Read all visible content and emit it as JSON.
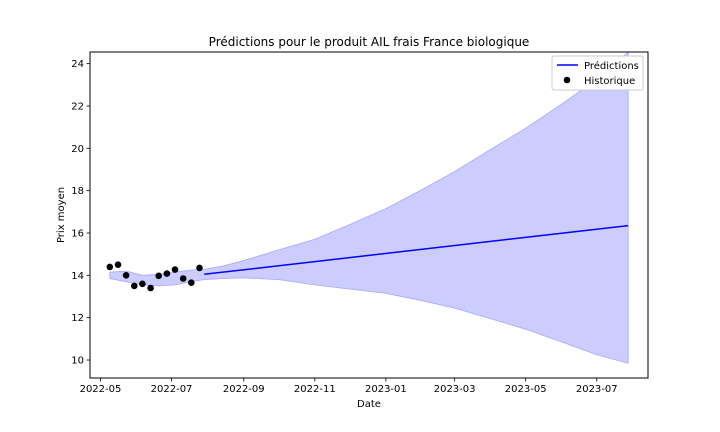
{
  "chart_data": {
    "type": "line",
    "title": "Prédictions pour le produit AIL frais France biologique",
    "xlabel": "Date",
    "ylabel": "Prix moyen",
    "xlim": [
      "2022-04-22",
      "2023-08-14"
    ],
    "ylim": [
      9.15,
      24.55
    ],
    "x_ticks": [
      "2022-05",
      "2022-07",
      "2022-09",
      "2022-11",
      "2023-01",
      "2023-03",
      "2023-05",
      "2023-07"
    ],
    "y_ticks": [
      10,
      12,
      14,
      16,
      18,
      20,
      22,
      24
    ],
    "grid": false,
    "legend_position": "top-right",
    "legend": [
      "Prédictions",
      "Historique"
    ],
    "colors": {
      "prediction_line": "#0000ff",
      "interval_fill": "#ccccff",
      "interval_edge": "#a8a8ff",
      "history_points": "#000000"
    },
    "series": [
      {
        "name": "Prédictions",
        "kind": "line",
        "points": [
          {
            "x": "2022-07-29",
            "y": 14.05
          },
          {
            "x": "2023-07-28",
            "y": 16.35
          }
        ]
      },
      {
        "name": "Historique",
        "kind": "scatter",
        "points": [
          {
            "x": "2022-05-09",
            "y": 14.4
          },
          {
            "x": "2022-05-16",
            "y": 14.5
          },
          {
            "x": "2022-05-23",
            "y": 14.0
          },
          {
            "x": "2022-05-30",
            "y": 13.5
          },
          {
            "x": "2022-06-06",
            "y": 13.6
          },
          {
            "x": "2022-06-13",
            "y": 13.4
          },
          {
            "x": "2022-06-20",
            "y": 13.98
          },
          {
            "x": "2022-06-27",
            "y": 14.08
          },
          {
            "x": "2022-07-04",
            "y": 14.27
          },
          {
            "x": "2022-07-11",
            "y": 13.85
          },
          {
            "x": "2022-07-18",
            "y": 13.65
          },
          {
            "x": "2022-07-25",
            "y": 14.35
          }
        ]
      },
      {
        "kind": "interval_upper",
        "points": [
          {
            "x": "2022-05-09",
            "y": 14.15
          },
          {
            "x": "2022-05-23",
            "y": 14.2
          },
          {
            "x": "2022-06-06",
            "y": 14.0
          },
          {
            "x": "2022-06-20",
            "y": 14.05
          },
          {
            "x": "2022-07-04",
            "y": 14.15
          },
          {
            "x": "2022-07-18",
            "y": 14.25
          },
          {
            "x": "2022-07-29",
            "y": 14.28
          },
          {
            "x": "2022-08-15",
            "y": 14.45
          },
          {
            "x": "2022-09-01",
            "y": 14.7
          },
          {
            "x": "2022-10-01",
            "y": 15.2
          },
          {
            "x": "2022-11-01",
            "y": 15.7
          },
          {
            "x": "2022-12-01",
            "y": 16.4
          },
          {
            "x": "2023-01-01",
            "y": 17.15
          },
          {
            "x": "2023-02-01",
            "y": 18.05
          },
          {
            "x": "2023-03-01",
            "y": 18.9
          },
          {
            "x": "2023-04-01",
            "y": 19.95
          },
          {
            "x": "2023-05-01",
            "y": 20.95
          },
          {
            "x": "2023-06-01",
            "y": 22.1
          },
          {
            "x": "2023-07-01",
            "y": 23.25
          },
          {
            "x": "2023-07-28",
            "y": 24.55
          }
        ]
      },
      {
        "kind": "interval_lower",
        "points": [
          {
            "x": "2022-05-09",
            "y": 13.85
          },
          {
            "x": "2022-05-23",
            "y": 13.7
          },
          {
            "x": "2022-06-06",
            "y": 13.55
          },
          {
            "x": "2022-06-20",
            "y": 13.5
          },
          {
            "x": "2022-07-04",
            "y": 13.55
          },
          {
            "x": "2022-07-18",
            "y": 13.7
          },
          {
            "x": "2022-07-29",
            "y": 13.8
          },
          {
            "x": "2022-08-15",
            "y": 13.85
          },
          {
            "x": "2022-09-01",
            "y": 13.88
          },
          {
            "x": "2022-10-01",
            "y": 13.8
          },
          {
            "x": "2022-11-01",
            "y": 13.55
          },
          {
            "x": "2022-12-01",
            "y": 13.35
          },
          {
            "x": "2023-01-01",
            "y": 13.15
          },
          {
            "x": "2023-02-01",
            "y": 12.8
          },
          {
            "x": "2023-03-01",
            "y": 12.45
          },
          {
            "x": "2023-04-01",
            "y": 11.95
          },
          {
            "x": "2023-05-01",
            "y": 11.45
          },
          {
            "x": "2023-06-01",
            "y": 10.85
          },
          {
            "x": "2023-07-01",
            "y": 10.25
          },
          {
            "x": "2023-07-28",
            "y": 9.85
          }
        ]
      }
    ]
  }
}
